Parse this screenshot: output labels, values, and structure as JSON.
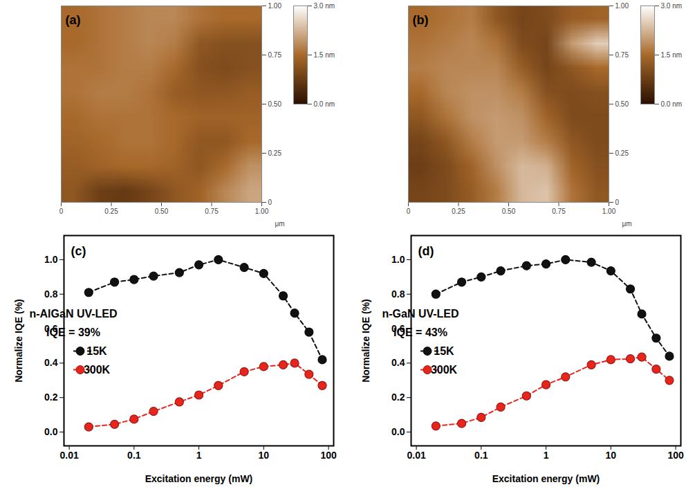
{
  "chart_data": [
    {
      "type": "heatmap",
      "title": "(a)",
      "x_label": "μm",
      "xlim": [
        0,
        1
      ],
      "xticks": [
        0,
        0.25,
        {
          "value": 0.5,
          "label": "0.50"
        },
        0.75,
        {
          "value": 1,
          "label": "1.00"
        }
      ],
      "ylim": [
        0,
        1
      ],
      "yticks": [
        0,
        0.25,
        {
          "value": 0.5,
          "label": "0.50"
        },
        0.75,
        {
          "value": 1,
          "label": "1.00"
        }
      ],
      "cells": [
        [
          1.5,
          1.6,
          1.7,
          1.8,
          1.8,
          1.6,
          1.5,
          1.5
        ],
        [
          1.5,
          1.6,
          1.7,
          1.8,
          1.7,
          1.2,
          1.1,
          1.1
        ],
        [
          1.6,
          1.6,
          1.7,
          1.7,
          1.5,
          1.1,
          1.0,
          1.1
        ],
        [
          1.6,
          1.7,
          1.7,
          1.6,
          1.3,
          1.2,
          1.2,
          1.3
        ],
        [
          1.5,
          1.6,
          1.6,
          1.6,
          1.5,
          1.4,
          1.4,
          1.4
        ],
        [
          1.4,
          1.5,
          1.6,
          1.6,
          1.5,
          1.2,
          1.2,
          1.5
        ],
        [
          1.3,
          1.4,
          1.5,
          1.5,
          1.4,
          1.2,
          1.5,
          1.9
        ],
        [
          1.2,
          0.8,
          0.7,
          0.9,
          1.2,
          1.4,
          1.8,
          2.1
        ]
      ],
      "colorbar": {
        "range": [
          0,
          3
        ],
        "ticks": [
          {
            "value": 0,
            "label": "0.0 nm"
          },
          {
            "value": 1.5,
            "label": "1.5 nm"
          },
          {
            "value": 3,
            "label": "3.0 nm"
          }
        ],
        "colors": [
          "#2a1000",
          "#a8692b",
          "#ffffff"
        ]
      }
    },
    {
      "type": "heatmap",
      "title": "(b)",
      "x_label": "μm",
      "xlim": [
        0,
        1
      ],
      "xticks": [
        0,
        0.25,
        {
          "value": 0.5,
          "label": "0.50"
        },
        0.75,
        {
          "value": 1,
          "label": "1.00"
        }
      ],
      "ylim": [
        0,
        1
      ],
      "yticks": [
        0,
        0.25,
        {
          "value": 0.5,
          "label": "0.50"
        },
        0.75,
        {
          "value": 1,
          "label": "1.00"
        }
      ],
      "cells": [
        [
          1.5,
          1.6,
          1.7,
          1.2,
          0.9,
          1.0,
          1.3,
          1.4
        ],
        [
          1.6,
          1.7,
          1.8,
          1.6,
          1.0,
          0.9,
          2.0,
          2.5
        ],
        [
          1.7,
          1.8,
          1.8,
          1.8,
          1.3,
          0.9,
          1.2,
          1.5
        ],
        [
          1.5,
          1.8,
          1.9,
          1.9,
          1.7,
          1.1,
          1.0,
          1.1
        ],
        [
          1.2,
          1.6,
          1.9,
          2.0,
          1.9,
          1.4,
          1.0,
          1.0
        ],
        [
          0.9,
          1.2,
          1.7,
          2.0,
          2.0,
          1.7,
          1.2,
          1.0
        ],
        [
          0.8,
          1.0,
          1.4,
          1.9,
          2.3,
          2.2,
          1.4,
          1.1
        ],
        [
          0.9,
          1.0,
          1.3,
          1.7,
          2.3,
          2.4,
          1.6,
          1.2
        ]
      ],
      "colorbar": {
        "range": [
          0,
          3
        ],
        "ticks": [
          {
            "value": 0,
            "label": "0.0 nm"
          },
          {
            "value": 1.5,
            "label": "1.5 nm"
          },
          {
            "value": 3,
            "label": "3.0 nm"
          }
        ],
        "colors": [
          "#2a1000",
          "#a8692b",
          "#ffffff"
        ]
      }
    },
    {
      "type": "line",
      "title": "(c)",
      "x_label": "Excitation energy (mW)",
      "y_label": "Normalize IQE (%)",
      "annotations": [
        "n-AlGaN UV-LED",
        "IQE = 39%"
      ],
      "log": "x",
      "legend": "left",
      "grid": false,
      "xlim": [
        0.0083,
        120
      ],
      "xticks": [
        0.01,
        0.1,
        1,
        10,
        100
      ],
      "ylim": [
        -0.08,
        1.14
      ],
      "yticks": [
        {
          "value": 0,
          "label": "0.0"
        },
        {
          "value": 0.2,
          "label": "0.2"
        },
        {
          "value": 0.4,
          "label": "0.4"
        },
        {
          "value": 0.6,
          "label": "0.6"
        },
        {
          "value": 0.8,
          "label": "0.8"
        },
        {
          "value": 1,
          "label": "1.0"
        }
      ],
      "x": [
        0.02,
        0.05,
        0.1,
        0.2,
        0.5,
        1,
        2,
        5,
        10,
        20,
        30,
        50,
        80
      ],
      "series": [
        {
          "name": "15K",
          "color": "#111111",
          "marker": "circle",
          "line_style": "dashed",
          "values": [
            0.81,
            0.87,
            0.885,
            0.905,
            0.925,
            0.97,
            1.0,
            0.955,
            0.92,
            0.79,
            0.69,
            0.58,
            0.42
          ]
        },
        {
          "name": "300K",
          "color": "#e8251c",
          "marker": "circle",
          "line_style": "dashed",
          "values": [
            0.03,
            0.045,
            0.075,
            0.12,
            0.175,
            0.215,
            0.27,
            0.35,
            0.38,
            0.39,
            0.4,
            0.335,
            0.27
          ]
        }
      ]
    },
    {
      "type": "line",
      "title": "(d)",
      "x_label": "Excitation energy (mW)",
      "y_label": "Normalize IQE (%)",
      "annotations": [
        "n-GaN UV-LED",
        "IQE = 43%"
      ],
      "log": "x",
      "legend": "left",
      "grid": false,
      "xlim": [
        0.0083,
        120
      ],
      "xticks": [
        0.01,
        0.1,
        1,
        10,
        100
      ],
      "ylim": [
        -0.08,
        1.14
      ],
      "yticks": [
        {
          "value": 0,
          "label": "0.0"
        },
        {
          "value": 0.2,
          "label": "0.2"
        },
        {
          "value": 0.4,
          "label": "0.4"
        },
        {
          "value": 0.6,
          "label": "0.6"
        },
        {
          "value": 0.8,
          "label": "0.8"
        },
        {
          "value": 1,
          "label": "1.0"
        }
      ],
      "x": [
        0.02,
        0.05,
        0.1,
        0.2,
        0.5,
        1,
        2,
        5,
        10,
        20,
        30,
        50,
        80
      ],
      "series": [
        {
          "name": "15K",
          "color": "#111111",
          "marker": "circle",
          "line_style": "dashed",
          "values": [
            0.8,
            0.87,
            0.9,
            0.935,
            0.965,
            0.975,
            1.0,
            0.985,
            0.935,
            0.83,
            0.685,
            0.545,
            0.44
          ]
        },
        {
          "name": "300K",
          "color": "#e8251c",
          "marker": "circle",
          "line_style": "dashed",
          "values": [
            0.035,
            0.05,
            0.085,
            0.145,
            0.21,
            0.275,
            0.32,
            0.39,
            0.42,
            0.425,
            0.435,
            0.365,
            0.3
          ]
        }
      ]
    }
  ]
}
